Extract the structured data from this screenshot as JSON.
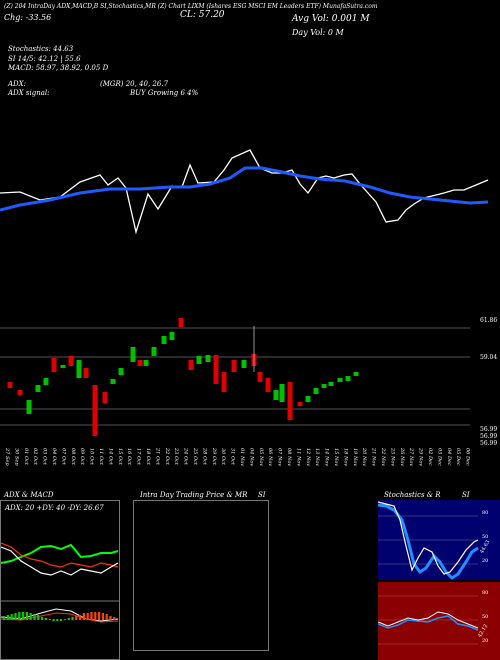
{
  "header": {
    "line1": "(Z) 204 IntraDay ADX,MACD,B    SI,Stochastics,MR         (Z) Chart LIXM        (Ishares ESG MSCI EM Leaders ETF) MunafaSutra.com",
    "chg": "Chg: -33.56",
    "close": "CL: 57.20",
    "avg_vol": "Avg Vol: 0.001 M",
    "day_vol": "Day Vol: 0   M",
    "stochastics": "Stochastics: 44.63",
    "si": "SI 14/5: 42.12 | 55.6",
    "macd": "MACD: 58.97, 38.92, 0.05 D",
    "adx": "ADX:",
    "mgr": "(MGR) 20, 40, 26.7",
    "adx_signal": "ADX signal:",
    "buy": "BUY Growing 6 4%"
  },
  "price_labels": {
    "p1": "61.86",
    "p2": "59.04",
    "p3": "56.99",
    "p4": "56.99",
    "p5": "56.99"
  },
  "dates": [
    "27 Sep",
    "30 Sep",
    "01 Oct",
    "02 Oct",
    "03 Oct",
    "04 Oct",
    "07 Oct",
    "08 Oct",
    "09 Oct",
    "10 Oct",
    "11 Oct",
    "14 Oct",
    "15 Oct",
    "16 Oct",
    "17 Oct",
    "18 Oct",
    "21 Oct",
    "22 Oct",
    "23 Oct",
    "24 Oct",
    "25 Oct",
    "28 Oct",
    "29 Oct",
    "30 Oct",
    "31 Oct",
    "01 Nov",
    "04 Nov",
    "05 Nov",
    "06 Nov",
    "07 Nov",
    "08 Nov",
    "11 Nov",
    "12 Nov",
    "13 Nov",
    "14 Nov",
    "15 Nov",
    "18 Nov",
    "19 Nov",
    "20 Nov",
    "21 Nov",
    "22 Nov",
    "25 Nov",
    "26 Nov",
    "27 Nov",
    "29 Nov",
    "02 Dec",
    "03 Dec",
    "04 Dec",
    "05 Dec",
    "06 Dec"
  ],
  "panes": {
    "adx": {
      "title": "ADX  & MACD",
      "values": "ADX: 20  +DY: 40  -DY: 26.67"
    },
    "intraday": {
      "title": "Intra  Day Trading Price  & MR",
      "si": "SI"
    },
    "stoch": {
      "title": "Stochastics & R",
      "si": "SI",
      "ticks_top": [
        "80",
        "50",
        "20"
      ],
      "ticks_bottom": [
        "80",
        "50",
        "20"
      ],
      "label_top": "44.63",
      "label_bottom": "42.12"
    }
  },
  "colors": {
    "up": "#00c000",
    "down": "#e00000",
    "ema": "#1e5bff",
    "price_line": "#ffffff",
    "stoch_bg": "#00006e",
    "rsi_bg": "#8b0000"
  }
}
